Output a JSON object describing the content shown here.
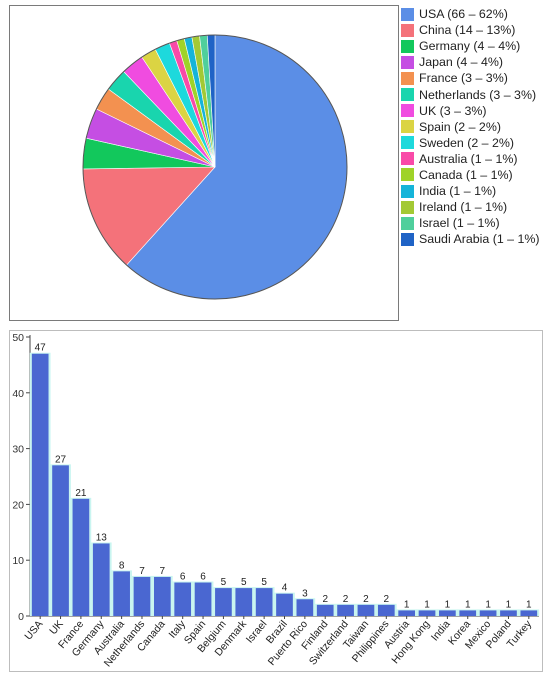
{
  "chart_data": [
    {
      "type": "pie",
      "slices": [
        {
          "label": "USA (66 – 62%)",
          "name": "USA",
          "value": 66,
          "color": "#5b8ee6"
        },
        {
          "label": "China (14 – 13%)",
          "name": "China",
          "value": 14,
          "color": "#f4727a"
        },
        {
          "label": "Germany (4 – 4%)",
          "name": "Germany",
          "value": 4,
          "color": "#12c85c"
        },
        {
          "label": "Japan (4 – 4%)",
          "name": "Japan",
          "value": 4,
          "color": "#c54ee3"
        },
        {
          "label": "France (3 – 3%)",
          "name": "France",
          "value": 3,
          "color": "#f39150"
        },
        {
          "label": "Netherlands (3 – 3%)",
          "name": "Netherlands",
          "value": 3,
          "color": "#19d5ae"
        },
        {
          "label": "UK (3 – 3%)",
          "name": "UK",
          "value": 3,
          "color": "#f04ce0"
        },
        {
          "label": "Spain (2 – 2%)",
          "name": "Spain",
          "value": 2,
          "color": "#dbd443"
        },
        {
          "label": "Sweden (2 – 2%)",
          "name": "Sweden",
          "value": 2,
          "color": "#1dd9dc"
        },
        {
          "label": "Australia (1 – 1%)",
          "name": "Australia",
          "value": 1,
          "color": "#f94aa8"
        },
        {
          "label": "Canada (1 – 1%)",
          "name": "Canada",
          "value": 1,
          "color": "#9fd328"
        },
        {
          "label": "India (1 – 1%)",
          "name": "India",
          "value": 1,
          "color": "#15b4d9"
        },
        {
          "label": "Ireland (1 – 1%)",
          "name": "Ireland",
          "value": 1,
          "color": "#a3c934"
        },
        {
          "label": "Israel (1 – 1%)",
          "name": "Israel",
          "value": 1,
          "color": "#4fcf9c"
        },
        {
          "label": "Saudi Arabia (1 – 1%)",
          "name": "Saudi Arabia",
          "value": 1,
          "color": "#1f63c6"
        }
      ],
      "legend_position": "right"
    },
    {
      "type": "bar",
      "categories": [
        "USA",
        "UK",
        "France",
        "Germany",
        "Australia",
        "Netherlands",
        "Canada",
        "Italy",
        "Spain",
        "Belgium",
        "Denmark",
        "Israel",
        "Brazil",
        "Puerto Rico",
        "Finland",
        "Switzerland",
        "Taiwan",
        "Philippines",
        "Austria",
        "Hong Kong",
        "India",
        "Korea",
        "Mexico",
        "Poland",
        "Turkey"
      ],
      "values": [
        47,
        27,
        21,
        13,
        8,
        7,
        7,
        6,
        6,
        5,
        5,
        5,
        4,
        3,
        2,
        2,
        2,
        2,
        1,
        1,
        1,
        1,
        1,
        1,
        1
      ],
      "ylim": [
        0,
        50
      ],
      "yticks": [
        0,
        10,
        20,
        30,
        40,
        50
      ],
      "bar_color": "#4a67d1",
      "data_labels": true,
      "grid": false
    }
  ]
}
